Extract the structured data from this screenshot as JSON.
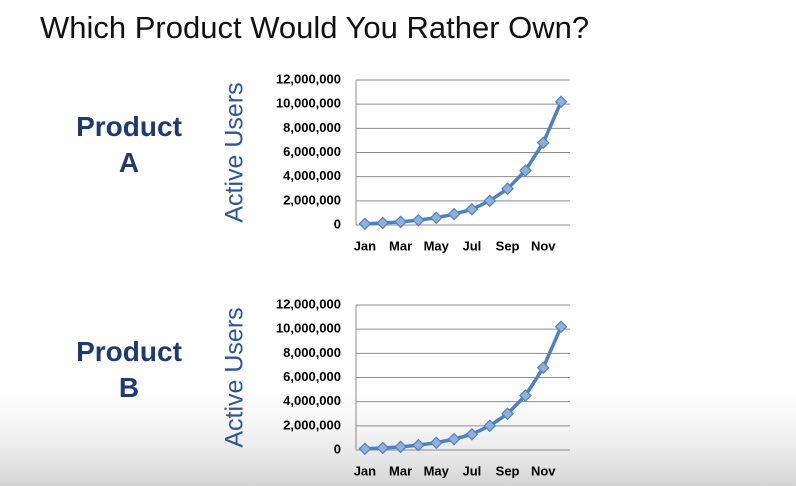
{
  "title": "Which Product Would You Rather Own?",
  "chart_data": [
    {
      "type": "line",
      "label": [
        "Product",
        "A"
      ],
      "y_label": "Active Users",
      "categories": [
        "Jan",
        null,
        "Mar",
        null,
        "May",
        null,
        "Jul",
        null,
        "Sep",
        null,
        "Nov",
        null
      ],
      "series": [
        {
          "name": "Active Users",
          "color": "#4f81bd",
          "values": [
            100000,
            170000,
            260000,
            400000,
            600000,
            900000,
            1300000,
            2000000,
            3000000,
            4500000,
            6800000,
            10200000
          ]
        }
      ],
      "ylim": [
        0,
        12000000
      ],
      "yticks": [
        0,
        {
          "value": 2000000,
          "label": "2,000,000"
        },
        {
          "value": 4000000,
          "label": "4,000,000"
        },
        {
          "value": 6000000,
          "label": "6,000,000"
        },
        {
          "value": 8000000,
          "label": "8,000,000"
        },
        {
          "value": 10000000,
          "label": "10,000,000"
        },
        {
          "value": 12000000,
          "label": "12,000,000"
        }
      ],
      "grid": true
    },
    {
      "type": "line",
      "label": [
        "Product",
        "B"
      ],
      "y_label": "Active Users",
      "categories": [
        "Jan",
        null,
        "Mar",
        null,
        "May",
        null,
        "Jul",
        null,
        "Sep",
        null,
        "Nov",
        null
      ],
      "series": [
        {
          "name": "Active Users",
          "color": "#4f81bd",
          "values": [
            100000,
            170000,
            260000,
            400000,
            600000,
            900000,
            1300000,
            2000000,
            3000000,
            4500000,
            6800000,
            10200000
          ]
        }
      ],
      "ylim": [
        0,
        12000000
      ],
      "yticks": [
        0,
        {
          "value": 2000000,
          "label": "2,000,000"
        },
        {
          "value": 4000000,
          "label": "4,000,000"
        },
        {
          "value": 6000000,
          "label": "6,000,000"
        },
        {
          "value": 8000000,
          "label": "8,000,000"
        },
        {
          "value": 10000000,
          "label": "10,000,000"
        },
        {
          "value": 12000000,
          "label": "12,000,000"
        }
      ],
      "grid": true
    }
  ]
}
